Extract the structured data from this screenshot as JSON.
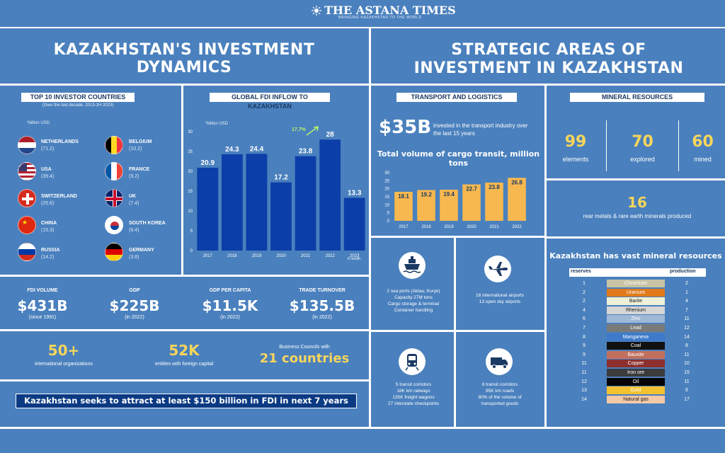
{
  "masthead": {
    "title": "THE ASTANA TIMES",
    "tagline": "BRINGING KAZAKHSTAN TO THE WORLD"
  },
  "left_title": "KAZAKHSTAN'S INVESTMENT DYNAMICS",
  "right_title": "STRATEGIC AREAS OF INVESTMENT IN KAZAKHSTAN",
  "investors": {
    "header": "TOP 10 INVESTOR COUNTRIES",
    "subheader": "(Over the last decade, 2013-1H 2023)",
    "unit": "*billion USD",
    "items": [
      {
        "name": "NETHERLANDS",
        "value": "(71.2)"
      },
      {
        "name": "USA",
        "value": "(39.4)"
      },
      {
        "name": "SWITZERLAND",
        "value": "(25.6)"
      },
      {
        "name": "CHINA",
        "value": "(15.3)"
      },
      {
        "name": "RUSSIA",
        "value": "(14.2)"
      },
      {
        "name": "BELGIUM",
        "value": "(10.2)"
      },
      {
        "name": "FRANCE",
        "value": "(9.2)"
      },
      {
        "name": "UK",
        "value": "(7.4)"
      },
      {
        "name": "SOUTH KOREA",
        "value": "(6.4)"
      },
      {
        "name": "GERMANY",
        "value": "(3.8)"
      }
    ]
  },
  "fdi": {
    "header": "GLOBAL FDI INFLOW TO KAZAKHSTAN",
    "unit": "*billion USD",
    "growth": "17.7%",
    "last_note": "6 month"
  },
  "chart_data": [
    {
      "type": "bar",
      "title": "GLOBAL FDI INFLOW TO KAZAKHSTAN",
      "categories": [
        "2017",
        "2018",
        "2019",
        "2020",
        "2021",
        "2022",
        "2023"
      ],
      "values": [
        20.9,
        24.3,
        24.4,
        17.2,
        23.8,
        28,
        13.3
      ],
      "labels": [
        "20.9",
        "24.3",
        "24.4",
        "17.2",
        "23.8",
        "28",
        "13.3"
      ],
      "yticks": [
        "0",
        "5",
        "10",
        "15",
        "20",
        "25",
        "30"
      ],
      "ylim": [
        0,
        30
      ],
      "color": "#0b3ea8"
    },
    {
      "type": "bar",
      "title": "Total volume of cargo transit, million tons",
      "categories": [
        "2017",
        "2018",
        "2019",
        "2020",
        "2021",
        "2022"
      ],
      "values": [
        18.1,
        19.2,
        19.4,
        22.7,
        23.8,
        26.8
      ],
      "labels": [
        "18.1",
        "19.2",
        "19.4",
        "22.7",
        "23.8",
        "26.8"
      ],
      "yticks": [
        "0",
        "5",
        "10",
        "15",
        "20",
        "25",
        "30"
      ],
      "ylim": [
        0,
        30
      ],
      "color": "#f7b84f"
    }
  ],
  "stats": [
    {
      "label": "FDI VOLUME",
      "value": "$431B",
      "sub": "(since 1991)"
    },
    {
      "label": "GDP",
      "value": "$225B",
      "sub": "(in 2022)"
    },
    {
      "label": "GDP PER CAPITA",
      "value": "$11.5K",
      "sub": "(in 2022)"
    },
    {
      "label": "TRADE TURNOVER",
      "value": "$135.5B",
      "sub": "(in 2022)"
    }
  ],
  "orgs": {
    "a_value": "50+",
    "a_label": "international organizations",
    "b_value": "52K",
    "b_label": "entities with foreign capital",
    "c_label": "Business Councils with",
    "c_value": "21 countries"
  },
  "banner": "Kazakhstan seeks to attract at least $150 billion in FDI in next 7 years",
  "transport": {
    "header": "TRANSPORT AND LOGISTICS",
    "amount": "$35B",
    "amount_text": "invested in the transport industry over the last 15 years",
    "cargo_title": "Total volume of cargo transit, million tons"
  },
  "minerals": {
    "header": "MINERAL RESOURCES",
    "a_value": "99",
    "a_label": "elements",
    "b_value": "70",
    "b_label": "explored",
    "c_value": "60",
    "c_label": "mined",
    "d_value": "16",
    "d_label": "rear metals & rare earth minerals produced"
  },
  "logistics": {
    "ports": [
      "2 sea ports (Aktau, Kuryk)",
      "Capacity 27M tons",
      "Cargo storage & terminal",
      "Container handling"
    ],
    "air": [
      "18 international airports",
      "13 open sky airports"
    ],
    "rail": [
      "5 transit corridors",
      "16K km railways",
      "135K freight wagons",
      "27 interstate checkpoints"
    ],
    "road": [
      "8 transit corridors",
      "95K km roads",
      "80% of the volume of",
      "transported goods"
    ]
  },
  "reserves": {
    "title": "Kazakhstan has vast mineral resources",
    "col_left": "reserves",
    "col_right": "production",
    "rows": [
      {
        "r": "1",
        "name": "Chromium",
        "p": "2",
        "color": "#c9c3a6",
        "dark": false
      },
      {
        "r": "2",
        "name": "Uranium",
        "p": "1",
        "color": "#e07a1a",
        "dark": false
      },
      {
        "r": "2",
        "name": "Barite",
        "p": "4",
        "color": "#eef0d8",
        "dark": true
      },
      {
        "r": "4",
        "name": "Rhenium",
        "p": "7",
        "color": "#d6d6d6",
        "dark": true
      },
      {
        "r": "6",
        "name": "Zinc",
        "p": "11",
        "color": "#9fb8d6",
        "dark": false
      },
      {
        "r": "7",
        "name": "Lead",
        "p": "12",
        "color": "#7a7a7a",
        "dark": false
      },
      {
        "r": "8",
        "name": "Manganese",
        "p": "14",
        "color": "#3e7ac9",
        "dark": false
      },
      {
        "r": "9",
        "name": "Coal",
        "p": "8",
        "color": "#111111",
        "dark": false
      },
      {
        "r": "9",
        "name": "Bauxite",
        "p": "11",
        "color": "#c2705e",
        "dark": false
      },
      {
        "r": "11",
        "name": "Copper",
        "p": "10",
        "color": "#8c2f2f",
        "dark": false
      },
      {
        "r": "11",
        "name": "Iron ore",
        "p": "15",
        "color": "#3b3b3b",
        "dark": false
      },
      {
        "r": "12",
        "name": "Oil",
        "p": "11",
        "color": "#050505",
        "dark": false
      },
      {
        "r": "13",
        "name": "Gold",
        "p": "6",
        "color": "#f2c230",
        "dark": false
      },
      {
        "r": "14",
        "name": "Natural gas",
        "p": "17",
        "color": "#f3c9a8",
        "dark": true
      }
    ]
  }
}
